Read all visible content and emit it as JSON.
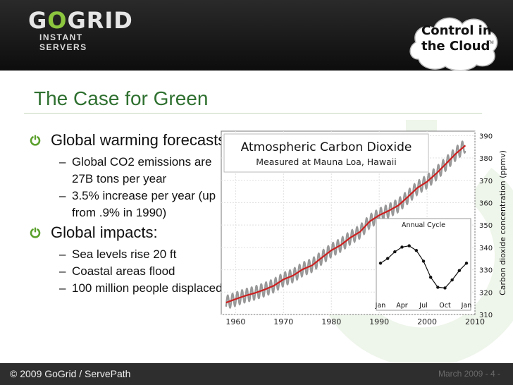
{
  "header": {
    "logo_word_a": "G",
    "logo_word_o": "O",
    "logo_word_b": "GRID",
    "logo_subtitle": "INSTANT SERVERS",
    "cloud_line1": "Control in",
    "cloud_line2": "the Cloud",
    "cloud_tm": "TM"
  },
  "title": "The Case for Green",
  "bullets": [
    {
      "text": "Global warming forecasts",
      "subs": [
        "Global CO2 emissions are 27B tons per year",
        "3.5% increase per year (up from .9% in 1990)"
      ]
    },
    {
      "text": "Global impacts:",
      "subs": [
        "Sea levels rise 20 ft",
        "Coastal areas flood",
        "100 million people displaced"
      ]
    }
  ],
  "footer": {
    "left": "© 2009 GoGrid / ServePath",
    "right": "March 2009 - 4 -"
  },
  "chart_data": {
    "type": "line",
    "title": "Atmospheric Carbon Dioxide",
    "subtitle": "Measured at Mauna Loa, Hawaii",
    "ylabel": "Carbon dioxide concentration (ppmv)",
    "xlabel": "",
    "xlim": [
      1957,
      2010
    ],
    "ylim": [
      310,
      392
    ],
    "x_ticks": [
      1960,
      1970,
      1980,
      1990,
      2000,
      2010
    ],
    "y_ticks": [
      310,
      320,
      330,
      340,
      350,
      360,
      370,
      380,
      390
    ],
    "series": [
      {
        "color": "#cc1f1f",
        "x": [
          1958,
          1960,
          1962,
          1964,
          1966,
          1968,
          1970,
          1972,
          1974,
          1976,
          1978,
          1980,
          1982,
          1984,
          1986,
          1988,
          1990,
          1992,
          1994,
          1996,
          1998,
          2000,
          2002,
          2004,
          2006,
          2008
        ],
        "y": [
          315.3,
          316.9,
          318.4,
          319.6,
          321.1,
          322.9,
          325.7,
          327.4,
          330.2,
          332.0,
          335.4,
          338.7,
          341.1,
          344.4,
          347.0,
          351.6,
          354.4,
          356.4,
          358.8,
          362.6,
          366.7,
          369.4,
          373.2,
          377.5,
          381.9,
          385.6
        ]
      },
      {
        "color": "#999999",
        "seasonal_amplitude": 3,
        "x": [
          1958,
          2008
        ]
      }
    ],
    "inset": {
      "title": "Annual Cycle",
      "type": "line",
      "categories": [
        "Jan",
        "Apr",
        "Jul",
        "Oct",
        "Jan"
      ],
      "x": [
        1,
        2,
        3,
        4,
        5,
        6,
        7,
        8,
        9,
        10,
        11,
        12,
        13
      ],
      "y": [
        0.5,
        1.2,
        2.2,
        2.9,
        3.1,
        2.4,
        0.8,
        -1.6,
        -3.1,
        -3.2,
        -2.0,
        -0.6,
        0.5
      ],
      "ylim": [
        -4,
        4
      ]
    }
  }
}
